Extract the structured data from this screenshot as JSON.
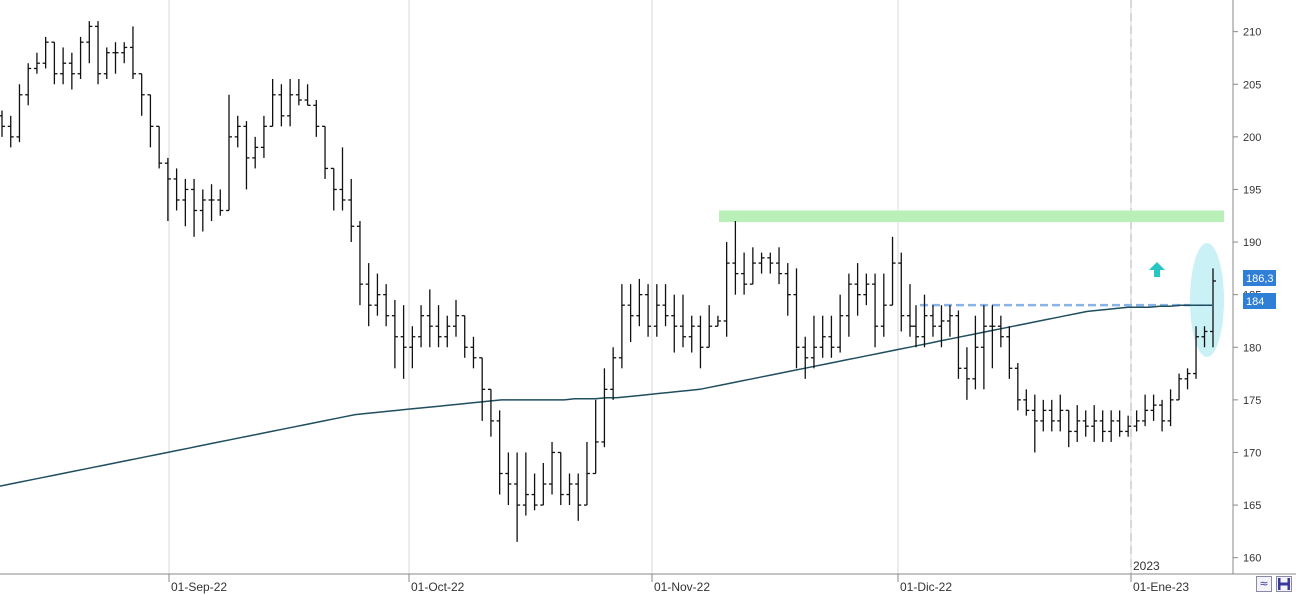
{
  "chart_data": {
    "type": "bar",
    "subtype": "ohlc",
    "y_axis": {
      "side": "right",
      "ticks": [
        "160",
        "165",
        "170",
        "175",
        "180",
        "185",
        "190",
        "195",
        "200",
        "205",
        "210"
      ],
      "range": [
        157.5,
        212
      ]
    },
    "x_axis": {
      "date_labels": [
        "01-Sep-22",
        "01-Oct-22",
        "01-Nov-22",
        "01-Dic-22",
        "01-Ene-23"
      ],
      "year_label": "2023"
    },
    "price_labels": {
      "last_price": "186,3",
      "moving_average": "184"
    },
    "annotations": {
      "resistance_zone": {
        "from": 191.9,
        "to": 193,
        "color": "#b8f0b8"
      },
      "dashed_level": {
        "value": 184,
        "color": "#8ab4e8"
      },
      "arrow": {
        "direction": "up",
        "color": "#26c6c6"
      },
      "highlight_ellipse": {
        "color": "#bfeef5"
      }
    },
    "colors": {
      "bars": "#111111",
      "moving_average": "#1f4e5f",
      "price_box": "#2f7fd6",
      "grid": "#cccccc",
      "axis": "#888888"
    },
    "series": [
      {
        "type": "ohlc",
        "bars": [
          [
            202,
            202.5,
            200,
            201
          ],
          [
            201,
            202,
            199,
            200
          ],
          [
            200,
            205,
            199.5,
            204
          ],
          [
            204,
            207,
            203,
            206.5
          ],
          [
            206.5,
            208,
            206,
            207
          ],
          [
            207,
            209.5,
            206.5,
            209
          ],
          [
            209,
            209,
            205,
            206
          ],
          [
            206,
            208.5,
            205,
            207
          ],
          [
            207,
            208,
            204.5,
            206
          ],
          [
            206,
            209.5,
            205.5,
            209
          ],
          [
            209,
            211,
            207,
            210.5
          ],
          [
            210.5,
            211,
            205,
            206
          ],
          [
            206,
            208.5,
            205.5,
            208
          ],
          [
            208,
            209,
            206,
            208
          ],
          [
            208,
            209,
            207,
            208.5
          ],
          [
            208.5,
            210.5,
            205.5,
            206
          ],
          [
            206,
            206,
            202,
            204
          ],
          [
            204,
            204,
            199,
            201
          ],
          [
            201,
            201,
            197,
            197.5
          ],
          [
            197.5,
            198,
            192,
            196
          ],
          [
            196,
            197,
            193,
            194
          ],
          [
            194,
            196,
            191.5,
            195
          ],
          [
            195,
            196,
            190.5,
            193
          ],
          [
            193,
            195,
            191,
            194
          ],
          [
            194,
            195.5,
            192,
            194
          ],
          [
            194,
            195,
            192.5,
            193
          ],
          [
            193,
            204,
            193,
            200
          ],
          [
            200,
            202,
            199,
            201
          ],
          [
            201,
            201.5,
            195,
            198
          ],
          [
            198,
            200,
            197,
            199
          ],
          [
            199,
            202,
            198,
            201
          ],
          [
            201,
            205.5,
            201,
            204
          ],
          [
            204,
            205,
            201,
            202
          ],
          [
            202,
            205.5,
            201,
            204
          ],
          [
            204,
            205.5,
            203,
            203.5
          ],
          [
            203.5,
            205,
            203,
            203
          ],
          [
            203,
            203.5,
            200,
            201
          ],
          [
            201,
            201,
            196,
            197
          ],
          [
            197,
            197,
            193,
            195
          ],
          [
            195,
            199,
            193,
            194
          ],
          [
            194,
            196,
            190,
            191.5
          ],
          [
            191.5,
            192,
            184,
            186
          ],
          [
            186,
            188,
            182,
            184
          ],
          [
            184,
            187,
            183,
            185
          ],
          [
            185,
            186,
            182,
            183
          ],
          [
            183,
            184.5,
            178,
            181
          ],
          [
            181,
            184,
            177,
            180
          ],
          [
            180,
            182,
            178,
            181
          ],
          [
            181,
            184,
            180,
            183
          ],
          [
            183,
            185.5,
            180,
            182
          ],
          [
            182,
            184,
            180,
            181
          ],
          [
            181,
            183,
            180,
            182
          ],
          [
            182,
            184.5,
            181,
            183
          ],
          [
            183,
            183,
            179,
            180
          ],
          [
            180,
            181,
            178,
            179
          ],
          [
            179,
            179,
            173,
            176
          ],
          [
            176,
            176,
            171.5,
            173
          ],
          [
            173,
            174,
            166,
            168
          ],
          [
            168,
            170,
            165,
            167
          ],
          [
            167,
            170,
            161.5,
            165
          ],
          [
            165,
            170,
            164,
            166
          ],
          [
            166,
            168,
            164.5,
            165
          ],
          [
            165,
            169,
            165,
            167
          ],
          [
            167,
            171,
            166,
            170
          ],
          [
            170,
            170,
            165,
            166
          ],
          [
            166,
            168,
            165,
            167
          ],
          [
            167,
            168,
            163.5,
            165
          ],
          [
            165,
            171,
            165,
            168
          ],
          [
            168,
            175,
            168,
            171
          ],
          [
            171,
            178,
            170.5,
            176
          ],
          [
            176,
            180,
            175,
            179
          ],
          [
            179,
            186,
            178,
            184
          ],
          [
            184,
            186,
            180.5,
            183
          ],
          [
            183,
            186.5,
            182,
            185
          ],
          [
            185,
            186,
            181,
            182
          ],
          [
            182,
            186,
            181,
            184
          ],
          [
            184,
            186,
            182,
            183
          ],
          [
            183,
            185,
            179.5,
            182
          ],
          [
            182,
            185,
            180,
            181
          ],
          [
            181,
            183,
            179.5,
            182
          ],
          [
            182,
            183,
            178,
            180
          ],
          [
            180,
            184,
            180,
            182
          ],
          [
            182,
            183,
            182,
            182.5
          ],
          [
            182.5,
            190,
            181,
            188
          ],
          [
            188,
            192,
            185,
            187
          ],
          [
            187,
            189,
            185,
            186
          ],
          [
            186,
            189.5,
            186,
            188
          ],
          [
            188,
            189,
            187,
            188.5
          ],
          [
            188.5,
            189,
            187,
            188
          ],
          [
            188,
            189.5,
            186,
            187
          ],
          [
            187,
            188,
            183,
            185
          ],
          [
            185,
            187.5,
            178,
            180
          ],
          [
            180,
            181,
            177,
            179
          ],
          [
            179,
            183,
            178,
            180
          ],
          [
            180,
            183,
            179,
            181
          ],
          [
            181,
            183,
            179,
            180
          ],
          [
            180,
            185,
            179.5,
            183
          ],
          [
            183,
            187,
            181,
            186
          ],
          [
            186,
            188,
            183,
            185
          ],
          [
            185,
            187,
            184,
            186
          ],
          [
            186,
            187,
            180,
            182
          ],
          [
            182,
            187,
            181,
            184
          ],
          [
            184,
            190.5,
            184,
            188
          ],
          [
            188,
            189,
            181.5,
            183
          ],
          [
            183,
            186,
            181,
            182
          ]
        ]
      },
      {
        "type": "ohlc",
        "bars": [
          [
            182,
            184,
            180,
            181
          ],
          [
            181,
            185,
            180,
            183
          ],
          [
            183,
            184,
            181,
            182
          ],
          [
            182,
            184,
            180,
            182.5
          ],
          [
            182.5,
            184,
            181,
            183
          ],
          [
            183,
            183.5,
            177,
            178
          ],
          [
            178,
            180,
            175,
            177
          ],
          [
            177,
            183,
            176,
            180
          ],
          [
            180,
            184,
            176,
            182
          ],
          [
            182,
            184,
            178,
            182
          ],
          [
            182,
            183,
            180,
            181
          ],
          [
            181,
            182,
            177,
            178
          ],
          [
            178,
            178.5,
            174,
            175
          ],
          [
            175,
            176,
            173.5,
            174
          ],
          [
            174,
            175.5,
            170,
            173
          ],
          [
            173,
            175,
            172,
            174
          ],
          [
            174,
            175,
            172,
            173
          ],
          [
            173,
            175.5,
            172,
            174
          ],
          [
            174,
            174,
            170.5,
            172
          ],
          [
            172,
            174.5,
            171,
            173
          ],
          [
            173,
            174,
            171.5,
            172.5
          ],
          [
            172.5,
            174.5,
            171,
            173
          ],
          [
            173,
            174,
            171,
            172
          ],
          [
            172,
            174,
            171,
            173
          ],
          [
            173,
            174,
            171.5,
            172
          ],
          [
            172,
            173.5,
            171.5,
            172.5
          ],
          [
            172.5,
            174,
            172,
            173
          ],
          [
            173,
            175.5,
            172.5,
            174
          ],
          [
            174,
            175.5,
            173,
            174.5
          ],
          [
            174.5,
            175,
            172,
            173
          ],
          [
            173,
            176,
            172.5,
            175
          ],
          [
            175,
            177.5,
            175,
            177
          ],
          [
            177,
            178,
            176,
            177.5
          ],
          [
            177.5,
            182,
            177,
            181
          ],
          [
            181,
            182,
            180,
            181.5
          ],
          [
            181.5,
            187.5,
            180,
            186.3
          ]
        ]
      },
      {
        "name": "",
        "type": "line",
        "values": [
          166.8,
          167.0,
          167.2,
          167.4,
          167.6,
          167.8,
          168.0,
          168.2,
          168.4,
          168.6,
          168.8,
          169.0,
          169.2,
          169.4,
          169.6,
          169.8,
          170.0,
          170.2,
          170.4,
          170.6,
          170.8,
          171.0,
          171.2,
          171.4,
          171.6,
          171.8,
          172.0,
          172.2,
          172.4,
          172.6,
          172.8,
          173.0,
          173.2,
          173.4,
          173.6,
          173.7,
          173.8,
          173.9,
          174.0,
          174.1,
          174.2,
          174.3,
          174.4,
          174.5,
          174.6,
          174.7,
          174.8,
          174.9,
          175.0,
          175.0,
          175.0,
          175.0,
          175.0,
          175.0,
          175.0,
          175.1,
          175.1,
          175.1,
          175.2,
          175.2,
          175.3,
          175.4,
          175.5,
          175.6,
          175.7,
          175.8,
          175.9,
          176.0,
          176.2,
          176.4,
          176.6,
          176.8,
          177.0,
          177.2,
          177.4,
          177.6,
          177.8,
          178.0,
          178.2,
          178.4,
          178.6,
          178.8,
          179.0,
          179.2,
          179.4,
          179.6,
          179.8,
          180.0,
          180.2,
          180.4,
          180.6,
          180.8,
          181.0,
          181.2,
          181.4,
          181.6,
          181.8,
          182.0,
          182.2,
          182.4,
          182.6,
          182.8,
          183.0,
          183.2,
          183.4,
          183.5,
          183.6,
          183.7,
          183.8,
          183.8,
          183.8,
          183.9,
          183.9,
          184.0,
          184.0,
          184.0,
          184.0
        ]
      }
    ]
  }
}
